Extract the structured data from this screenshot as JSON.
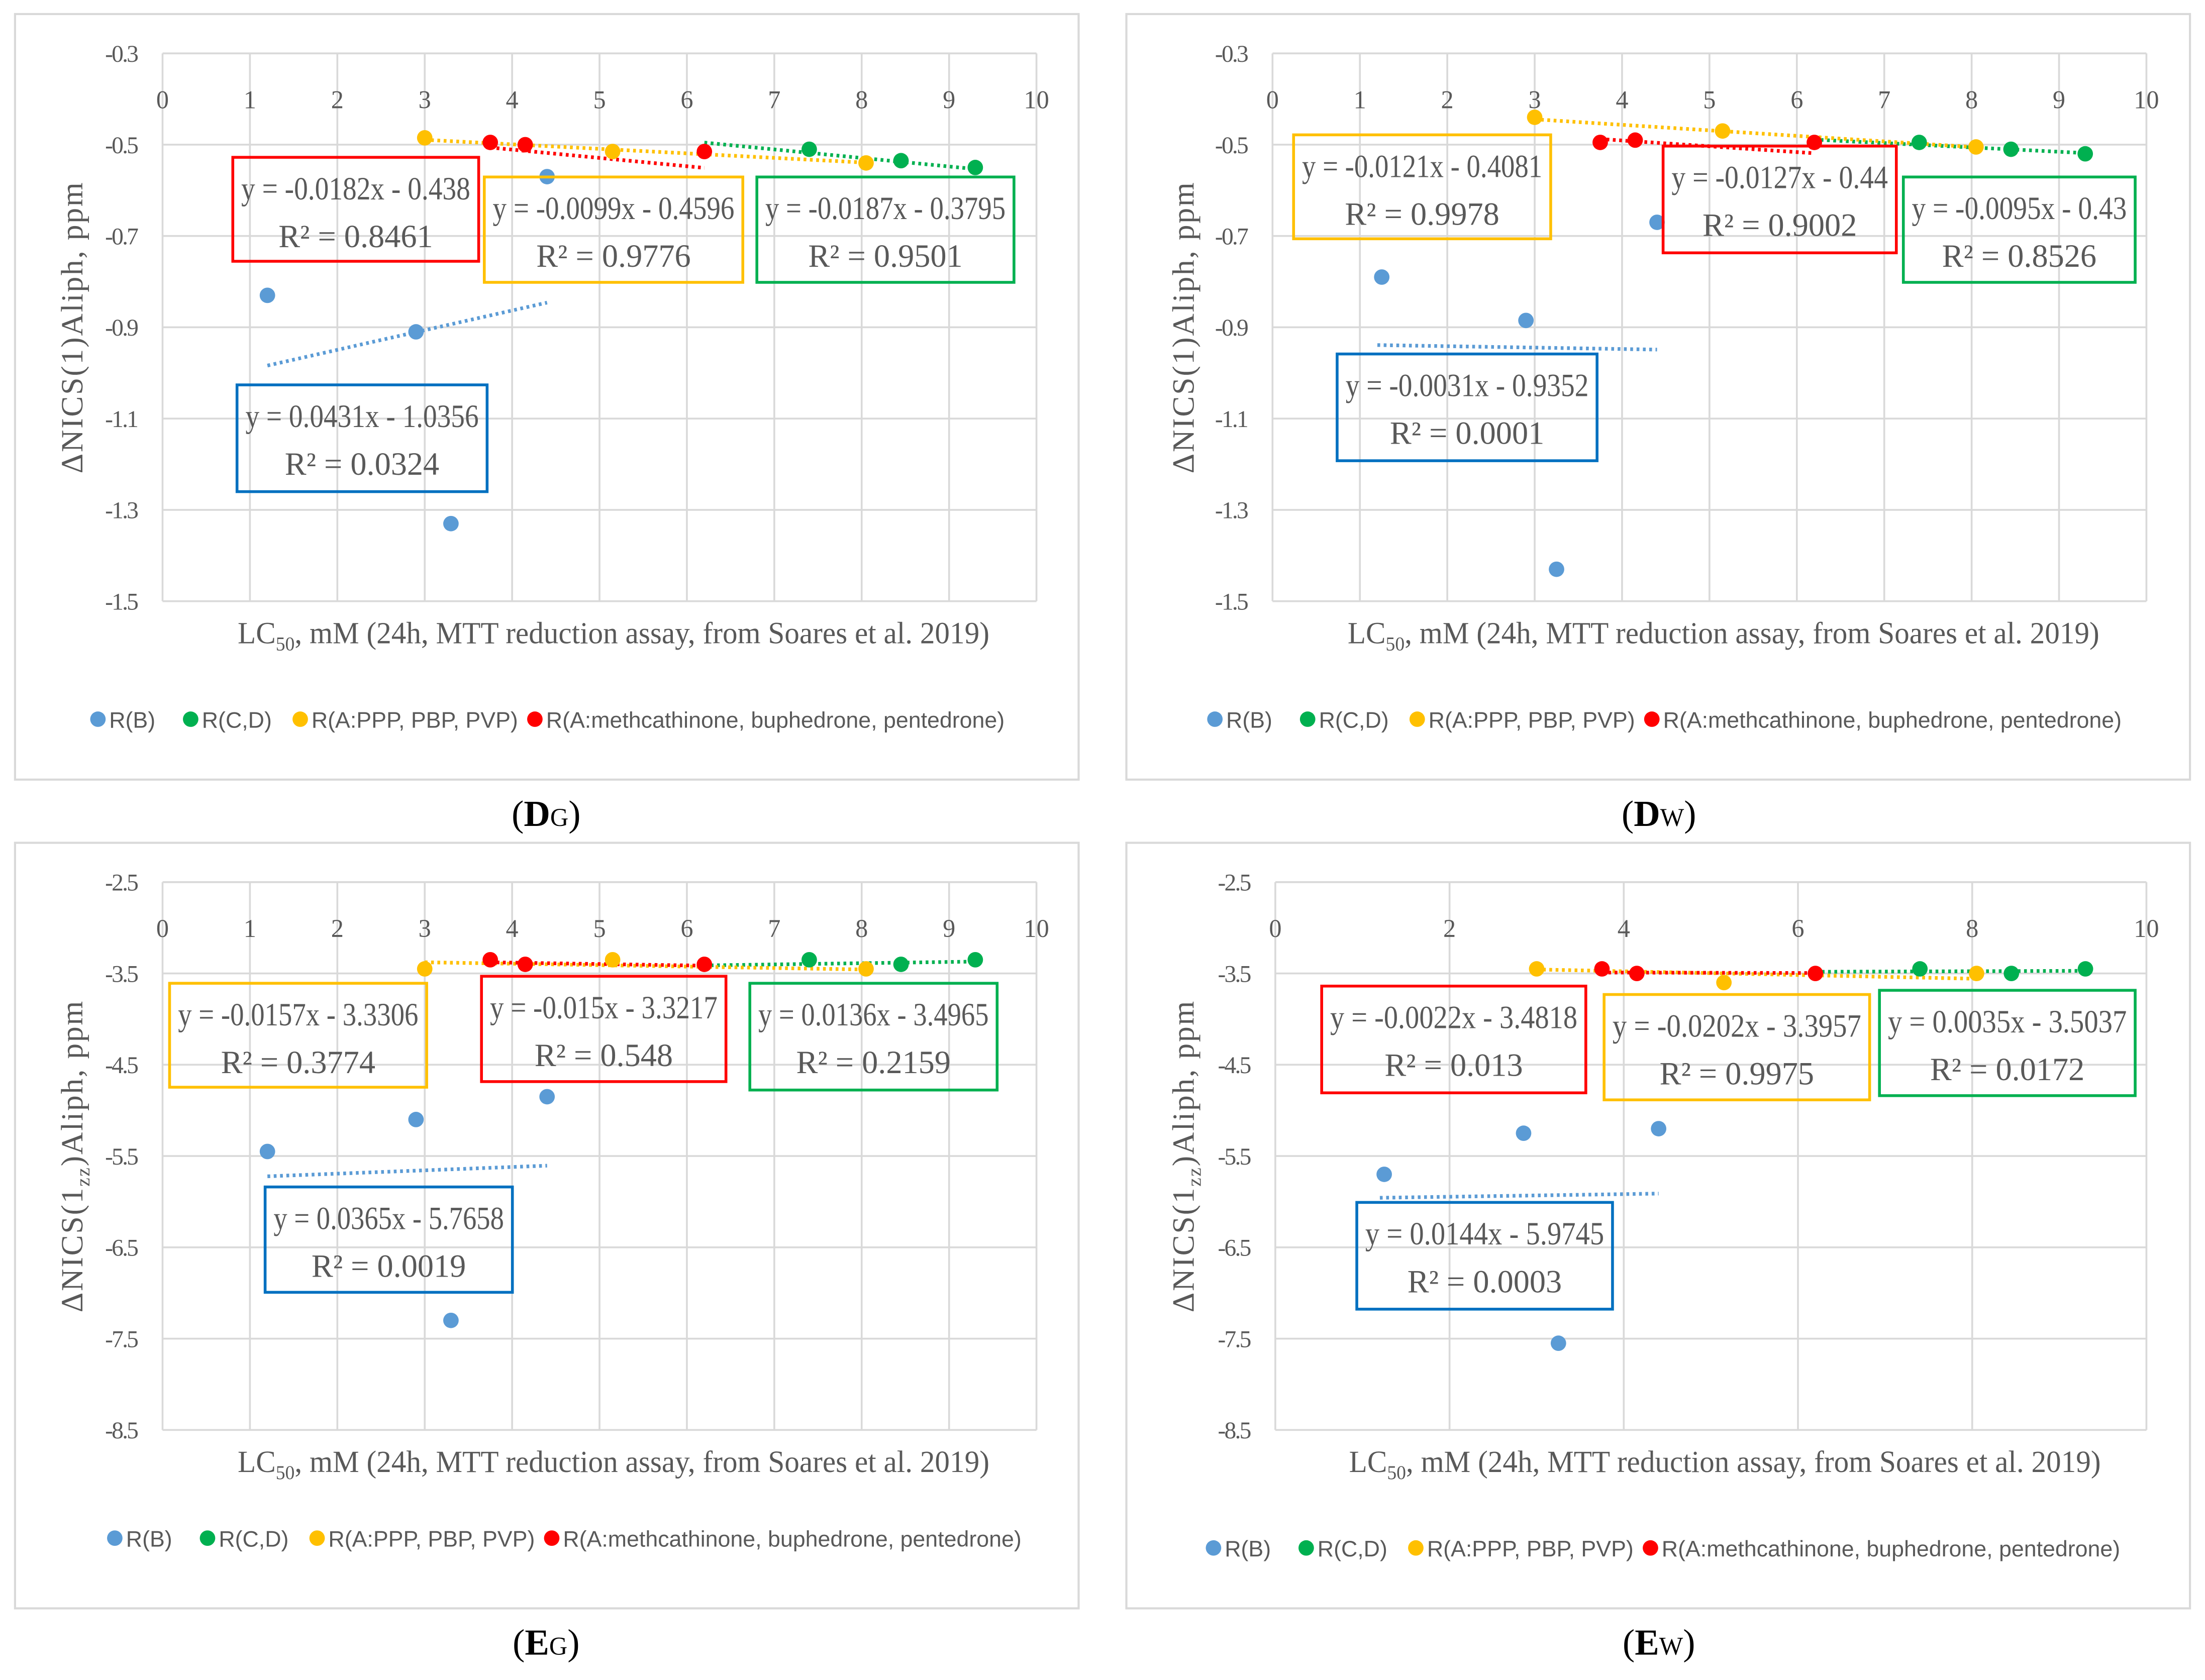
{
  "colors": {
    "R_B": "#5B9BD5",
    "R_CD": "#00B050",
    "R_A_PPP": "#FFC000",
    "R_A_meth": "#FF0000",
    "eq_box_blue": "#0070C0",
    "grid": "#D9D9D9",
    "text": "#595959"
  },
  "legend": [
    "R(B)",
    "R(C,D)",
    "R(A:PPP, PBP, PVP)",
    "R(A:methcathinone, buphedrone, pentedrone)"
  ],
  "chart_data": [
    {
      "type": "scatter",
      "caption_main": "D",
      "caption_sub": "G",
      "ylabel_pre": "ΔNICS(1)Aliph, ppm",
      "ylabel_sub": "",
      "xlabel_pre": "LC",
      "xlabel_sub": "50",
      "xlabel_post": ", mM (24h, MTT reduction assay, from Soares et al. 2019)",
      "xlim": [
        0,
        10
      ],
      "ylim": [
        -1.5,
        -0.3
      ],
      "xticks": [
        "0",
        "1",
        "2",
        "3",
        "4",
        "5",
        "6",
        "7",
        "8",
        "9",
        "10"
      ],
      "yticks": [
        "-0.3",
        "-0.5",
        "-0.7",
        "-0.9",
        "-1.1",
        "-1.3",
        "-1.5"
      ],
      "grid": true,
      "legend_placement": "bottom",
      "series": [
        {
          "name": "R(B)",
          "x": [
            1.2,
            2.9,
            3.3,
            4.4
          ],
          "y": [
            -0.83,
            -0.91,
            -1.33,
            -0.57
          ],
          "trend": {
            "slope": 0.0431,
            "intercept": -1.0356,
            "from": 1.2,
            "to": 4.4
          },
          "equation": "y = 0.0431x - 1.0356",
          "r2": "R² = 0.0324"
        },
        {
          "name": "R(C,D)",
          "x": [
            7.4,
            8.45,
            9.3
          ],
          "y": [
            -0.51,
            -0.535,
            -0.55
          ],
          "trend": {
            "slope": -0.0187,
            "intercept": -0.3795,
            "from": 6.2,
            "to": 9.3
          },
          "equation": "y = -0.0187x - 0.3795",
          "r2": "R² = 0.9501"
        },
        {
          "name": "R(A:PPP, PBP, PVP)",
          "x": [
            3.0,
            5.15,
            8.05
          ],
          "y": [
            -0.485,
            -0.515,
            -0.54
          ],
          "trend": {
            "slope": -0.0099,
            "intercept": -0.4596,
            "from": 3.0,
            "to": 8.05
          },
          "equation": "y = -0.0099x - 0.4596",
          "r2": "R² = 0.9776"
        },
        {
          "name": "R(A:methcathinone, buphedrone, pentedrone)",
          "x": [
            3.75,
            4.15,
            6.2
          ],
          "y": [
            -0.495,
            -0.5,
            -0.515
          ],
          "trend": {
            "slope": -0.0182,
            "intercept": -0.438,
            "from": 3.75,
            "to": 6.2
          },
          "equation": "y = -0.0182x - 0.438",
          "r2": "R² = 0.8461"
        }
      ]
    },
    {
      "type": "scatter",
      "caption_main": "D",
      "caption_sub": "W",
      "ylabel_pre": "ΔNICS(1)Aliph, ppm",
      "ylabel_sub": "",
      "xlabel_pre": "LC",
      "xlabel_sub": "50",
      "xlabel_post": ", mM (24h, MTT reduction assay, from Soares et al. 2019)",
      "xlim": [
        0,
        10
      ],
      "ylim": [
        -1.5,
        -0.3
      ],
      "xticks": [
        "0",
        "1",
        "2",
        "3",
        "4",
        "5",
        "6",
        "7",
        "8",
        "9",
        "10"
      ],
      "yticks": [
        "-0.3",
        "-0.5",
        "-0.7",
        "-0.9",
        "-1.1",
        "-1.3",
        "-1.5"
      ],
      "grid": true,
      "legend_placement": "bottom",
      "series": [
        {
          "name": "R(B)",
          "x": [
            1.25,
            2.9,
            3.25,
            4.4
          ],
          "y": [
            -0.79,
            -0.885,
            -1.43,
            -0.67
          ],
          "trend": {
            "slope": -0.0031,
            "intercept": -0.9352,
            "from": 1.2,
            "to": 4.4
          },
          "equation": "y = -0.0031x - 0.9352",
          "r2": "R² = 0.0001"
        },
        {
          "name": "R(C,D)",
          "x": [
            7.4,
            8.45,
            9.3
          ],
          "y": [
            -0.495,
            -0.51,
            -0.52
          ],
          "trend": {
            "slope": -0.0095,
            "intercept": -0.43,
            "from": 6.2,
            "to": 9.3
          },
          "equation": "y = -0.0095x - 0.43",
          "r2": "R² = 0.8526"
        },
        {
          "name": "R(A:PPP, PBP, PVP)",
          "x": [
            3.0,
            5.15,
            8.05
          ],
          "y": [
            -0.44,
            -0.47,
            -0.505
          ],
          "trend": {
            "slope": -0.0121,
            "intercept": -0.4081,
            "from": 3.0,
            "to": 8.05
          },
          "equation": "y = -0.0121x - 0.4081",
          "r2": "R² = 0.9978"
        },
        {
          "name": "R(A:methcathinone, buphedrone, pentedrone)",
          "x": [
            3.75,
            4.15,
            6.2
          ],
          "y": [
            -0.495,
            -0.49,
            -0.495
          ],
          "trend": {
            "slope": -0.0127,
            "intercept": -0.44,
            "from": 3.75,
            "to": 6.2
          },
          "equation": "y = -0.0127x - 0.44",
          "r2": "R² = 0.9002"
        }
      ]
    },
    {
      "type": "scatter",
      "caption_main": "E",
      "caption_sub": "G",
      "ylabel_pre": "ΔNICS(1",
      "ylabel_sub": "zz",
      "ylabel_post": ")Aliph, ppm",
      "xlabel_pre": "LC",
      "xlabel_sub": "50",
      "xlabel_post": ", mM (24h, MTT reduction assay, from Soares et al. 2019)",
      "xlim": [
        0,
        10
      ],
      "ylim": [
        -8.5,
        -2.5
      ],
      "xticks": [
        "0",
        "1",
        "2",
        "3",
        "4",
        "5",
        "6",
        "7",
        "8",
        "9",
        "10"
      ],
      "yticks": [
        "-2.5",
        "-3.5",
        "-4.5",
        "-5.5",
        "-6.5",
        "-7.5",
        "-8.5"
      ],
      "grid": true,
      "legend_placement": "bottom",
      "series": [
        {
          "name": "R(B)",
          "x": [
            1.2,
            2.9,
            3.3,
            4.4
          ],
          "y": [
            -5.45,
            -5.1,
            -7.3,
            -4.85
          ],
          "trend": {
            "slope": 0.0365,
            "intercept": -5.7658,
            "from": 1.2,
            "to": 4.4
          },
          "equation": "y = 0.0365x - 5.7658",
          "r2": "R² = 0.0019"
        },
        {
          "name": "R(C,D)",
          "x": [
            7.4,
            8.45,
            9.3
          ],
          "y": [
            -3.35,
            -3.4,
            -3.35
          ],
          "trend": {
            "slope": 0.0136,
            "intercept": -3.4965,
            "from": 6.2,
            "to": 9.3
          },
          "equation": "y = 0.0136x - 3.4965",
          "r2": "R² = 0.2159"
        },
        {
          "name": "R(A:PPP, PBP, PVP)",
          "x": [
            3.0,
            5.15,
            8.05
          ],
          "y": [
            -3.45,
            -3.35,
            -3.45
          ],
          "trend": {
            "slope": -0.0157,
            "intercept": -3.3306,
            "from": 3.0,
            "to": 8.05
          },
          "equation": "y = -0.0157x - 3.3306",
          "r2": "R² = 0.3774"
        },
        {
          "name": "R(A:methcathinone, buphedrone, pentedrone)",
          "x": [
            3.75,
            4.15,
            6.2
          ],
          "y": [
            -3.35,
            -3.4,
            -3.4
          ],
          "trend": {
            "slope": -0.015,
            "intercept": -3.3217,
            "from": 3.75,
            "to": 6.2
          },
          "equation": "y = -0.015x - 3.3217",
          "r2": "R² = 0.548"
        }
      ]
    },
    {
      "type": "scatter",
      "caption_main": "E",
      "caption_sub": "W",
      "ylabel_pre": "ΔNICS(1",
      "ylabel_sub": "zz",
      "ylabel_post": ")Aliph, ppm",
      "xlabel_pre": "LC",
      "xlabel_sub": "50",
      "xlabel_post": ", mM (24h, MTT reduction assay, from Soares et al. 2019)",
      "xlim": [
        0,
        10
      ],
      "ylim": [
        -8.5,
        -2.5
      ],
      "xticks": [
        "0",
        "2",
        "4",
        "6",
        "8",
        "10"
      ],
      "yticks": [
        "-2.5",
        "-3.5",
        "-4.5",
        "-5.5",
        "-6.5",
        "-7.5",
        "-8.5"
      ],
      "grid": true,
      "legend_placement": "bottom",
      "series": [
        {
          "name": "R(B)",
          "x": [
            1.25,
            2.85,
            3.25,
            4.4
          ],
          "y": [
            -5.7,
            -5.25,
            -7.55,
            -5.2
          ],
          "trend": {
            "slope": 0.0144,
            "intercept": -5.9745,
            "from": 1.2,
            "to": 4.4
          },
          "equation": "y = 0.0144x - 5.9745",
          "r2": "R² = 0.0003"
        },
        {
          "name": "R(C,D)",
          "x": [
            7.4,
            8.45,
            9.3
          ],
          "y": [
            -3.45,
            -3.5,
            -3.45
          ],
          "trend": {
            "slope": 0.0035,
            "intercept": -3.5037,
            "from": 6.2,
            "to": 9.3
          },
          "equation": "y = 0.0035x - 3.5037",
          "r2": "R² = 0.0172"
        },
        {
          "name": "R(A:PPP, PBP, PVP)",
          "x": [
            3.0,
            5.15,
            8.05
          ],
          "y": [
            -3.45,
            -3.6,
            -3.5
          ],
          "trend": {
            "slope": -0.0202,
            "intercept": -3.3957,
            "from": 3.0,
            "to": 8.05
          },
          "equation": "y = -0.0202x - 3.3957",
          "r2": "R² = 0.9975"
        },
        {
          "name": "R(A:methcathinone, buphedrone, pentedrone)",
          "x": [
            3.75,
            4.15,
            6.2
          ],
          "y": [
            -3.45,
            -3.5,
            -3.5
          ],
          "trend": {
            "slope": -0.0022,
            "intercept": -3.4818,
            "from": 3.75,
            "to": 6.2
          },
          "equation": "y = -0.0022x - 3.4818",
          "r2": "R² = 0.013"
        }
      ]
    }
  ]
}
